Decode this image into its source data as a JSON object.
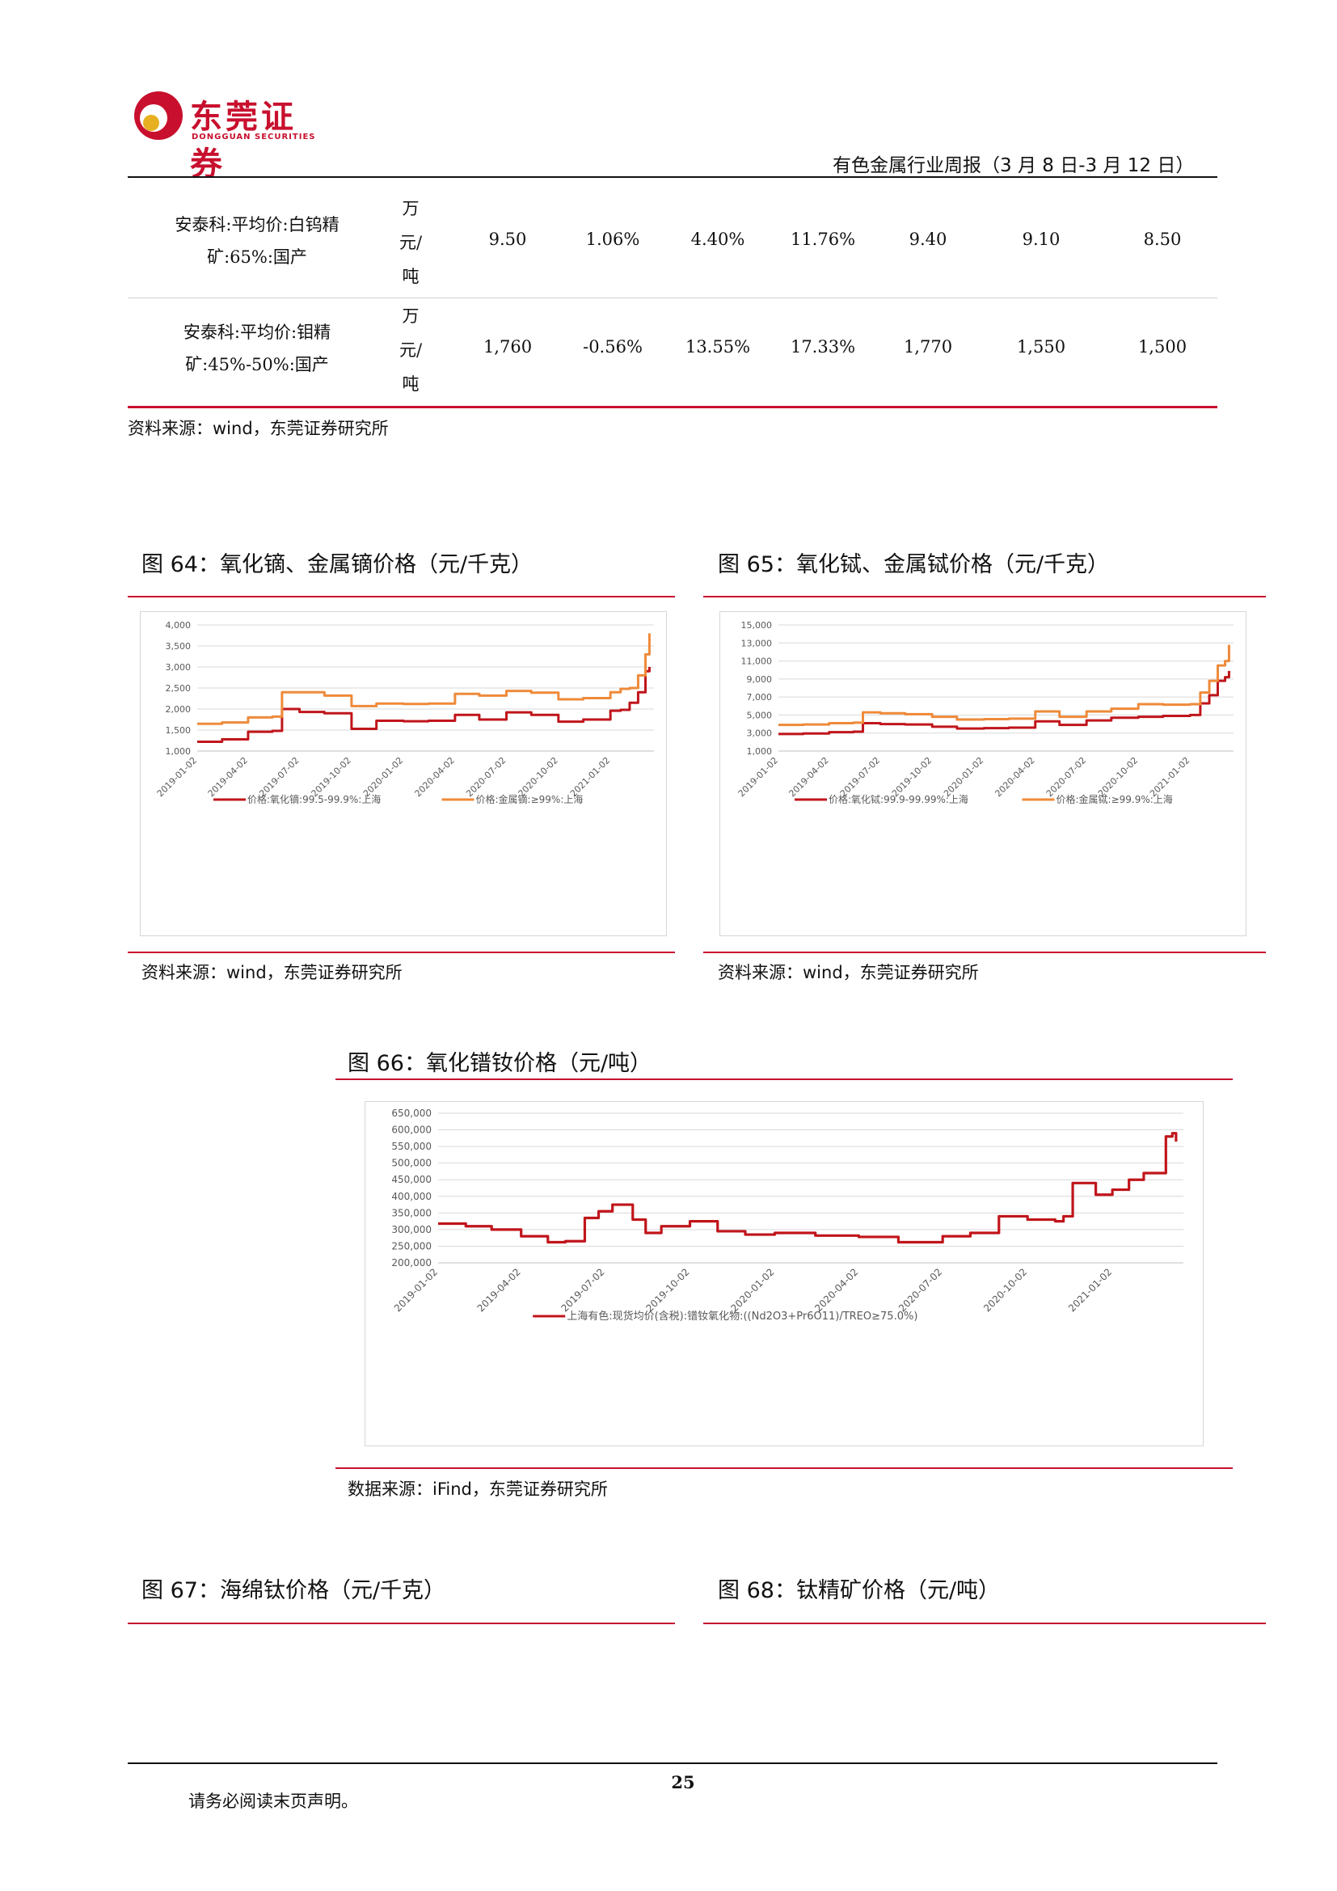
{
  "header": {
    "logo_cn": "东莞证券",
    "logo_en": "DONGGUAN SECURITIES",
    "report_title": "有色金属行业周报（3 月 8 日-3 月 12 日）"
  },
  "table": {
    "rows": [
      {
        "name_line1": "安泰科:平均价:白钨精",
        "name_line2": "矿:65%:国产",
        "unit1": "万",
        "unit2": "元/",
        "unit3": "吨",
        "values": [
          "9.50",
          "1.06%",
          "4.40%",
          "11.76%",
          "9.40",
          "9.10",
          "8.50"
        ]
      },
      {
        "name_line1": "安泰科:平均价:钼精",
        "name_line2": "矿:45%-50%:国产",
        "unit1": "万",
        "unit2": "元/",
        "unit3": "吨",
        "values": [
          "1,760",
          "-0.56%",
          "13.55%",
          "17.33%",
          "1,770",
          "1,550",
          "1,500"
        ]
      }
    ],
    "source": "资料来源：wind，东莞证券研究所"
  },
  "figures": {
    "fig64": {
      "caption": "图 64：氧化镝、金属镝价格（元/千克）",
      "source": "资料来源：wind，东莞证券研究所"
    },
    "fig65": {
      "caption": "图 65：氧化铽、金属铽价格（元/千克）",
      "source": "资料来源：wind，东莞证券研究所"
    },
    "fig66": {
      "caption": "图 66：氧化镨钕价格（元/吨）",
      "source": "数据来源：iFind，东莞证券研究所"
    },
    "fig67": {
      "caption": "图 67：海绵钛价格（元/千克）"
    },
    "fig68": {
      "caption": "图 68：钛精矿价格（元/吨）"
    }
  },
  "footer": {
    "page_number": "25",
    "disclaimer": "请务必阅读末页声明。"
  },
  "colors": {
    "brand_red": "#c8102e",
    "series_dark_red": "#c0151b",
    "series_orange": "#ee8a3a"
  },
  "chart_data": [
    {
      "id": "fig64",
      "type": "line",
      "x": [
        "2019-01-02",
        "2019-02-15",
        "2019-04-02",
        "2019-05-15",
        "2019-06-01",
        "2019-07-02",
        "2019-08-15",
        "2019-10-02",
        "2019-11-15",
        "2020-01-02",
        "2020-02-15",
        "2020-04-02",
        "2020-05-15",
        "2020-07-02",
        "2020-08-15",
        "2020-10-02",
        "2020-11-15",
        "2021-01-02",
        "2021-01-20",
        "2021-02-05",
        "2021-02-20",
        "2021-03-05",
        "2021-03-12"
      ],
      "xticks": [
        "2019-01-02",
        "2019-04-02",
        "2019-07-02",
        "2019-10-02",
        "2020-01-02",
        "2020-04-02",
        "2020-07-02",
        "2020-10-02",
        "2021-01-02"
      ],
      "ylim": [
        1000,
        4000
      ],
      "yticks": [
        "1,000",
        "1,500",
        "2,000",
        "2,500",
        "3,000",
        "3,500",
        "4,000"
      ],
      "series": [
        {
          "name": "价格:氧化镝:99.5-99.9%:上海",
          "color": "#c0151b",
          "values": [
            1220,
            1280,
            1460,
            1480,
            2000,
            1930,
            1900,
            1530,
            1720,
            1710,
            1720,
            1860,
            1750,
            1920,
            1860,
            1700,
            1750,
            1960,
            1980,
            2150,
            2400,
            2900,
            3000
          ]
        },
        {
          "name": "价格:金属镝:≥99%:上海",
          "color": "#ee8a3a",
          "values": [
            1650,
            1680,
            1800,
            1820,
            2400,
            2400,
            2320,
            2070,
            2130,
            2120,
            2130,
            2360,
            2320,
            2430,
            2390,
            2230,
            2260,
            2400,
            2480,
            2500,
            2800,
            3300,
            3800
          ]
        }
      ],
      "legend": "bottom"
    },
    {
      "id": "fig65",
      "type": "line",
      "x": [
        "2019-01-02",
        "2019-02-15",
        "2019-04-02",
        "2019-05-15",
        "2019-06-01",
        "2019-07-02",
        "2019-08-15",
        "2019-10-02",
        "2019-11-15",
        "2020-01-02",
        "2020-02-15",
        "2020-04-02",
        "2020-05-15",
        "2020-07-02",
        "2020-08-15",
        "2020-10-02",
        "2020-11-15",
        "2021-01-02",
        "2021-01-20",
        "2021-02-05",
        "2021-02-20",
        "2021-03-05",
        "2021-03-12"
      ],
      "xticks": [
        "2019-01-02",
        "2019-04-02",
        "2019-07-02",
        "2019-10-02",
        "2020-01-02",
        "2020-04-02",
        "2020-07-02",
        "2020-10-02",
        "2021-01-02"
      ],
      "ylim": [
        1000,
        15000
      ],
      "yticks": [
        "1,000",
        "3,000",
        "5,000",
        "7,000",
        "9,000",
        "11,000",
        "13,000",
        "15,000"
      ],
      "series": [
        {
          "name": "价格:氧化铽:99.9-99.99%:上海",
          "color": "#c0151b",
          "values": [
            2900,
            2950,
            3100,
            3150,
            4100,
            4000,
            3950,
            3700,
            3500,
            3550,
            3600,
            4300,
            3900,
            4400,
            4700,
            4800,
            4900,
            5000,
            6300,
            7200,
            8800,
            9200,
            9900
          ]
        },
        {
          "name": "价格:金属铽:≥99.9%:上海",
          "color": "#ee8a3a",
          "values": [
            3900,
            3950,
            4100,
            4150,
            5300,
            5200,
            5100,
            4800,
            4500,
            4550,
            4600,
            5400,
            4800,
            5400,
            5700,
            6200,
            6150,
            6200,
            7500,
            8800,
            10500,
            11000,
            12800
          ]
        }
      ],
      "legend": "bottom"
    },
    {
      "id": "fig66",
      "type": "line",
      "x": [
        "2019-01-02",
        "2019-02-01",
        "2019-03-01",
        "2019-04-02",
        "2019-05-01",
        "2019-05-20",
        "2019-06-10",
        "2019-06-25",
        "2019-07-10",
        "2019-08-01",
        "2019-08-15",
        "2019-09-01",
        "2019-10-02",
        "2019-11-01",
        "2019-12-01",
        "2020-01-02",
        "2020-02-15",
        "2020-04-02",
        "2020-05-15",
        "2020-07-02",
        "2020-08-01",
        "2020-09-01",
        "2020-10-02",
        "2020-11-01",
        "2020-11-10",
        "2020-11-20",
        "2020-12-15",
        "2021-01-02",
        "2021-01-20",
        "2021-02-05",
        "2021-02-20",
        "2021-03-01",
        "2021-03-08",
        "2021-03-12"
      ],
      "xticks": [
        "2019-01-02",
        "2019-04-02",
        "2019-07-02",
        "2019-10-02",
        "2020-01-02",
        "2020-04-02",
        "2020-07-02",
        "2020-10-02",
        "2021-01-02"
      ],
      "ylim": [
        200000,
        650000
      ],
      "yticks": [
        "200,000",
        "250,000",
        "300,000",
        "350,000",
        "400,000",
        "450,000",
        "500,000",
        "550,000",
        "600,000",
        "650,000"
      ],
      "series": [
        {
          "name": "上海有色:现货均价(含税):镨钕氧化物:((Nd2O3+Pr6O11)/TREO≥75.0%)",
          "color": "#c0151b",
          "values": [
            318000,
            310000,
            300000,
            280000,
            262000,
            265000,
            335000,
            355000,
            375000,
            330000,
            290000,
            310000,
            325000,
            295000,
            285000,
            290000,
            282000,
            278000,
            262000,
            280000,
            290000,
            340000,
            330000,
            325000,
            340000,
            440000,
            405000,
            420000,
            450000,
            470000,
            470000,
            580000,
            590000,
            565000
          ]
        }
      ],
      "legend": "bottom"
    }
  ]
}
